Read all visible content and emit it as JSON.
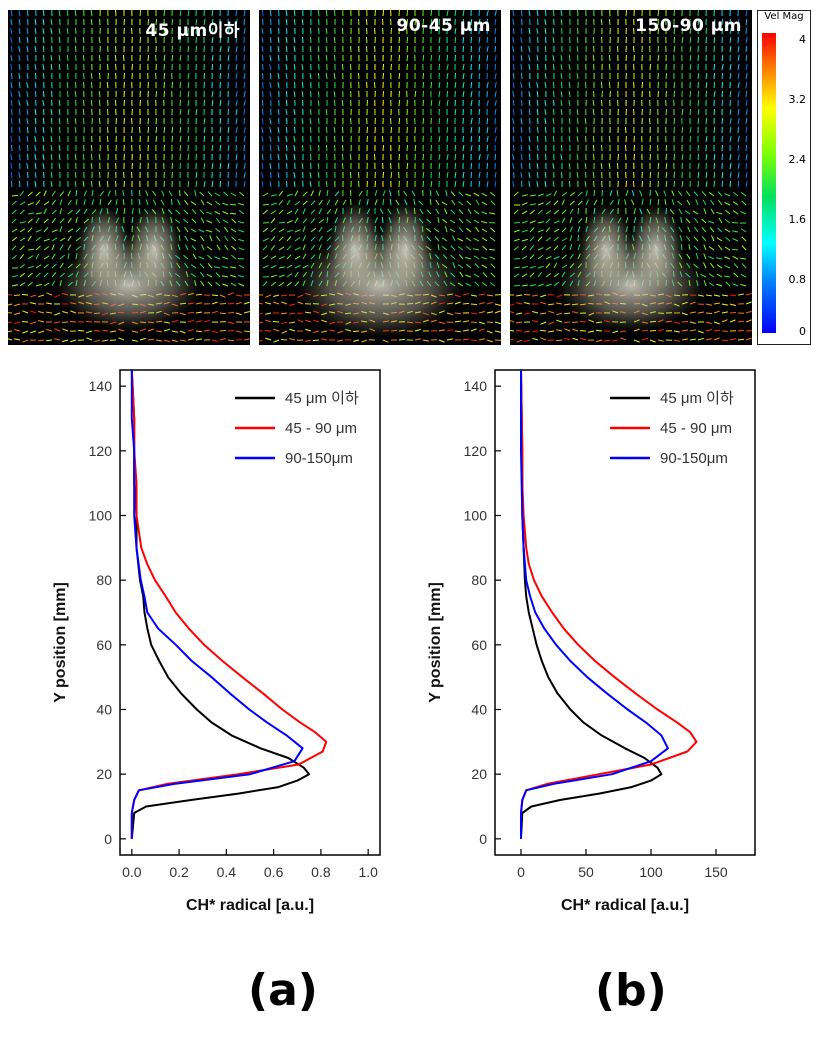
{
  "panels": [
    {
      "title": "45 μm이하",
      "plume": 0.55
    },
    {
      "title": "90-45 μm",
      "plume": 0.9
    },
    {
      "title": "150-90 μm",
      "plume": 0.6
    }
  ],
  "colorbar": {
    "title": "Vel Mag",
    "ticks": [
      "4",
      "3.2",
      "2.4",
      "1.6",
      "0.8",
      "0"
    ],
    "colors": {
      "low": "#0000ff",
      "mid": "#00ff00",
      "high": "#ff0000"
    }
  },
  "sublabels": {
    "a": "(a)",
    "b": "(b)"
  },
  "chart_data": [
    {
      "type": "line",
      "xlabel": "CH* radical [a.u.]",
      "ylabel": "Y position [mm]",
      "xlim": [
        -0.05,
        1.05
      ],
      "ylim": [
        -5,
        145
      ],
      "xticks": [
        "0.0",
        "0.2",
        "0.4",
        "0.6",
        "0.8",
        "1.0"
      ],
      "xtick_values": [
        0,
        0.2,
        0.4,
        0.6,
        0.8,
        1.0
      ],
      "yticks": [
        "0",
        "20",
        "40",
        "60",
        "80",
        "100",
        "120",
        "140"
      ],
      "ytick_values": [
        0,
        20,
        40,
        60,
        80,
        100,
        120,
        140
      ],
      "legend_location": "top-right",
      "series": [
        {
          "name": "45 μm 이하",
          "color": "#000000",
          "y": [
            0,
            8,
            10,
            12,
            14,
            16,
            18,
            20,
            22,
            25,
            28,
            32,
            36,
            40,
            45,
            50,
            55,
            60,
            65,
            70,
            75,
            80,
            90,
            100,
            110,
            120,
            130,
            145
          ],
          "x": [
            0.0,
            0.01,
            0.06,
            0.25,
            0.45,
            0.62,
            0.7,
            0.75,
            0.72,
            0.66,
            0.55,
            0.43,
            0.34,
            0.27,
            0.2,
            0.15,
            0.12,
            0.09,
            0.07,
            0.05,
            0.04,
            0.03,
            0.02,
            0.02,
            0.01,
            0.01,
            0.01,
            0.0
          ]
        },
        {
          "name": "45 - 90 μm",
          "color": "#ff0000",
          "y": [
            0,
            8,
            12,
            15,
            17,
            20,
            23,
            27,
            30,
            33,
            36,
            40,
            45,
            50,
            55,
            60,
            65,
            70,
            75,
            80,
            85,
            90,
            100,
            110,
            120,
            130,
            145
          ],
          "x": [
            0.0,
            0.0,
            0.01,
            0.03,
            0.15,
            0.45,
            0.7,
            0.8,
            0.82,
            0.78,
            0.72,
            0.64,
            0.55,
            0.46,
            0.38,
            0.31,
            0.25,
            0.19,
            0.14,
            0.09,
            0.06,
            0.04,
            0.02,
            0.02,
            0.01,
            0.01,
            0.0
          ]
        },
        {
          "name": "90-150μm",
          "color": "#0000ff",
          "y": [
            0,
            8,
            12,
            15,
            17,
            20,
            24,
            28,
            32,
            36,
            40,
            45,
            50,
            55,
            60,
            65,
            70,
            75,
            80,
            90,
            100,
            110,
            120,
            130,
            145
          ],
          "x": [
            0.0,
            0.0,
            0.01,
            0.03,
            0.18,
            0.5,
            0.68,
            0.72,
            0.66,
            0.58,
            0.5,
            0.41,
            0.33,
            0.25,
            0.19,
            0.12,
            0.07,
            0.05,
            0.03,
            0.02,
            0.01,
            0.01,
            0.01,
            0.0,
            0.0
          ]
        }
      ]
    },
    {
      "type": "line",
      "xlabel": "CH* radical [a.u.]",
      "ylabel": "Y position [mm]",
      "xlim": [
        -20,
        180
      ],
      "ylim": [
        -5,
        145
      ],
      "xticks": [
        "0",
        "50",
        "100",
        "150"
      ],
      "xtick_values": [
        0,
        50,
        100,
        150
      ],
      "yticks": [
        "0",
        "20",
        "40",
        "60",
        "80",
        "100",
        "120",
        "140"
      ],
      "ytick_values": [
        0,
        20,
        40,
        60,
        80,
        100,
        120,
        140
      ],
      "legend_location": "top-right",
      "series": [
        {
          "name": "45 μm 이하",
          "color": "#000000",
          "y": [
            0,
            8,
            10,
            12,
            14,
            16,
            18,
            20,
            22,
            25,
            28,
            32,
            36,
            40,
            45,
            50,
            55,
            60,
            65,
            70,
            75,
            80,
            90,
            100,
            120,
            145
          ],
          "x": [
            0,
            1,
            8,
            30,
            60,
            85,
            100,
            108,
            105,
            95,
            80,
            62,
            48,
            38,
            28,
            21,
            16,
            12,
            9,
            6,
            4,
            3,
            2,
            1,
            1,
            0
          ]
        },
        {
          "name": "45 - 90 μm",
          "color": "#ff0000",
          "y": [
            0,
            8,
            12,
            15,
            17,
            20,
            23,
            27,
            30,
            33,
            36,
            40,
            45,
            50,
            55,
            60,
            65,
            70,
            75,
            80,
            85,
            90,
            100,
            110,
            120,
            145
          ],
          "x": [
            0,
            0,
            1,
            4,
            20,
            60,
            100,
            128,
            135,
            130,
            120,
            105,
            88,
            72,
            57,
            44,
            33,
            24,
            16,
            10,
            6,
            4,
            2,
            1,
            1,
            0
          ]
        },
        {
          "name": "90-150μm",
          "color": "#0000ff",
          "y": [
            0,
            8,
            12,
            15,
            17,
            20,
            24,
            28,
            32,
            36,
            40,
            45,
            50,
            55,
            60,
            65,
            70,
            75,
            80,
            90,
            100,
            120,
            145
          ],
          "x": [
            0,
            0,
            1,
            4,
            25,
            70,
            100,
            113,
            108,
            96,
            82,
            66,
            51,
            38,
            27,
            18,
            11,
            7,
            4,
            2,
            1,
            0,
            0
          ]
        }
      ]
    }
  ]
}
